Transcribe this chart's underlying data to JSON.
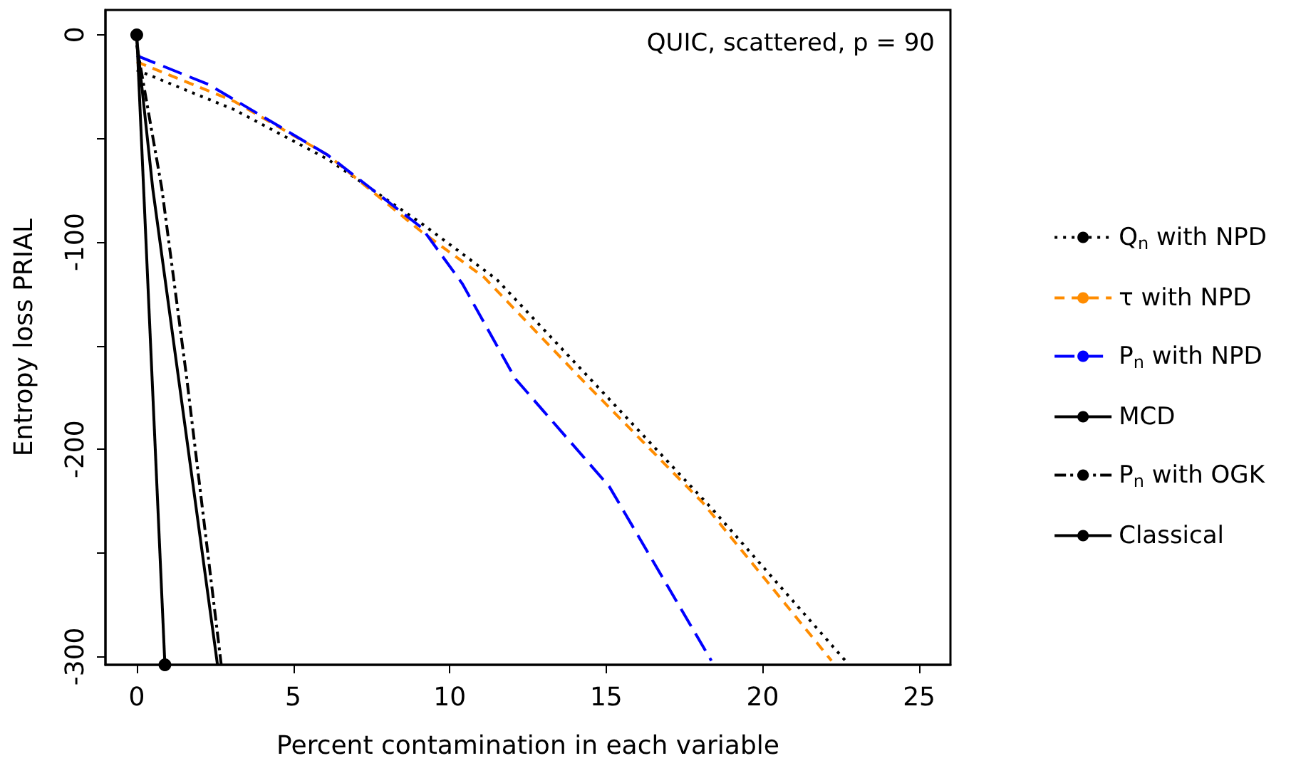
{
  "chart_data": {
    "type": "line",
    "xlabel": "Percent contamination in each variable",
    "ylabel": "Entropy loss PRIAL",
    "annotations": [
      "QUIC, scattered, p = 90"
    ],
    "xlim": [
      -1,
      26
    ],
    "xticks": [
      0,
      5,
      10,
      15,
      20,
      25
    ],
    "ylim": [
      -304,
      12
    ],
    "yticks": [
      0,
      {
        "value": -50,
        "label": null
      },
      -100,
      {
        "value": -150,
        "label": null
      },
      -200,
      {
        "value": -250,
        "label": null
      },
      -300
    ],
    "grid": false,
    "legend": "right",
    "series": [
      {
        "name": "Q$_{n}$ with NPD",
        "color": "#000000",
        "line_style": "dotted",
        "marker": "none",
        "x": [
          0,
          3.1,
          6.1,
          9.1,
          11.5,
          14.8,
          18.4,
          22.7
        ],
        "values": [
          -17,
          -36,
          -60,
          -91,
          -118,
          -171,
          -229,
          -303
        ]
      },
      {
        "name": "τ with NPD",
        "color": "#ff8c00",
        "line_style": "dashed",
        "marker": "none",
        "x": [
          0,
          3.1,
          6.1,
          9.1,
          11.1,
          14.2,
          18.1,
          22.2
        ],
        "values": [
          -13,
          -32,
          -58,
          -95,
          -117,
          -166,
          -226,
          -302
        ]
      },
      {
        "name": "P$_{n}$ with NPD",
        "color": "#0000ff",
        "line_style": "longdash",
        "marker": "none",
        "x": [
          0,
          2.3,
          6.1,
          9.1,
          10.4,
          12.1,
          15.1,
          18.36
        ],
        "values": [
          -10,
          -24,
          -58,
          -93,
          -120,
          -166,
          -218,
          -302
        ]
      },
      {
        "name": "MCD",
        "color": "#000000",
        "line_style": "solid",
        "marker": "none",
        "x": [
          0,
          0.51,
          2.58
        ],
        "values": [
          -2,
          -74,
          -304
        ]
      },
      {
        "name": "P$_{n}$ with OGK",
        "color": "#000000",
        "line_style": "dashdot",
        "marker": "none",
        "x": [
          0,
          0.8,
          1.6,
          2.7
        ],
        "values": [
          -5,
          -74,
          -166,
          -304
        ]
      },
      {
        "name": "Classical",
        "color": "#000000",
        "line_style": "solid",
        "marker": "circle",
        "x": [
          0,
          0.9
        ],
        "values": [
          0,
          -304
        ]
      }
    ]
  }
}
